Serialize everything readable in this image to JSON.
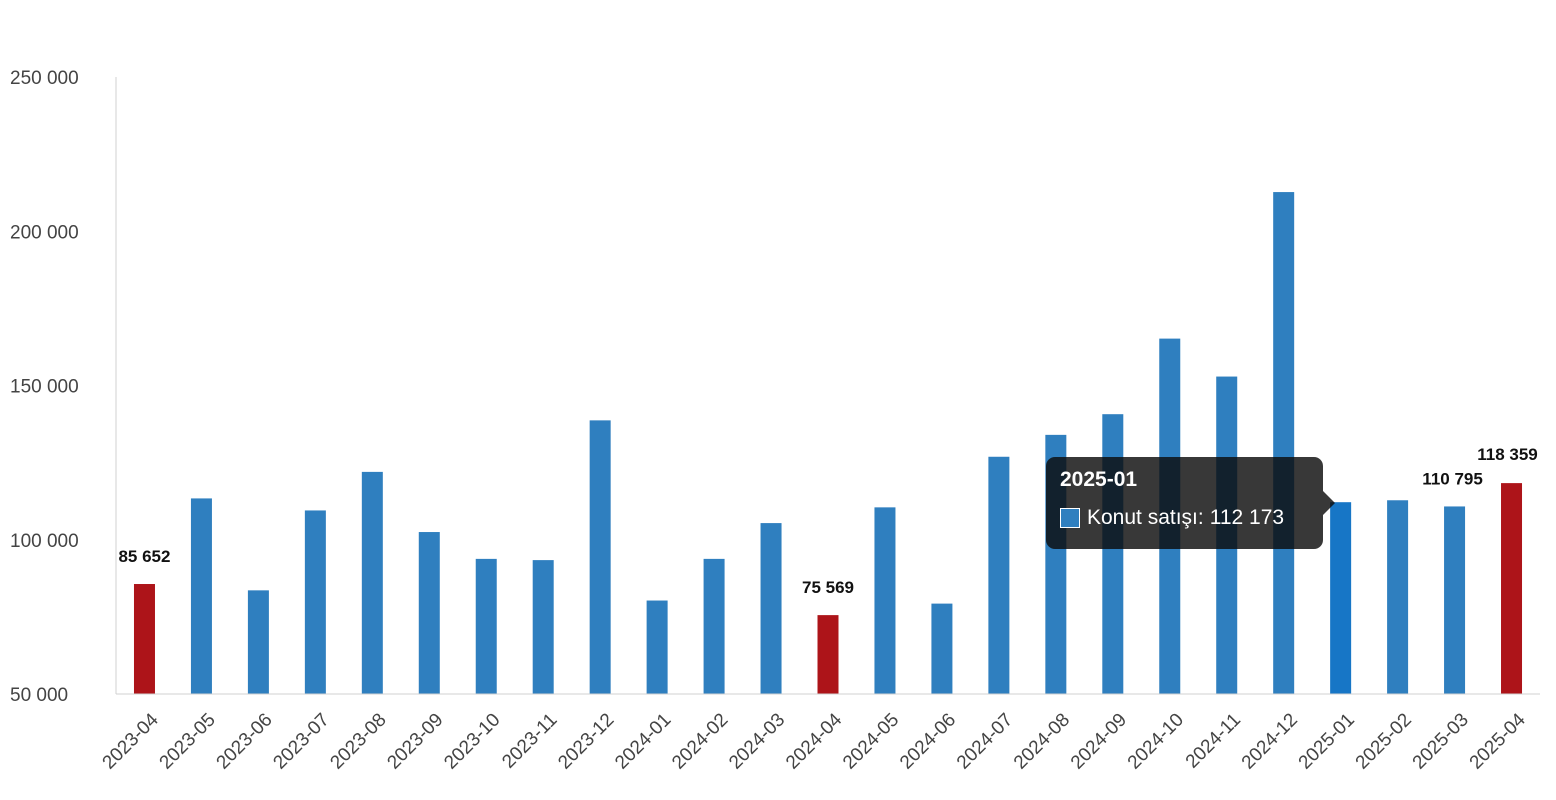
{
  "chart_data": {
    "type": "bar",
    "categories": [
      "2023-04",
      "2023-05",
      "2023-06",
      "2023-07",
      "2023-08",
      "2023-09",
      "2023-10",
      "2023-11",
      "2023-12",
      "2024-01",
      "2024-02",
      "2024-03",
      "2024-04",
      "2024-05",
      "2024-06",
      "2024-07",
      "2024-08",
      "2024-09",
      "2024-10",
      "2024-11",
      "2024-12",
      "2025-01",
      "2025-02",
      "2025-03",
      "2025-04"
    ],
    "series": [
      {
        "name": "Konut satışı",
        "values": [
          85652,
          113400,
          83600,
          109500,
          122000,
          102500,
          93800,
          93400,
          138700,
          80300,
          93800,
          105400,
          75569,
          110500,
          79300,
          126900,
          134000,
          140700,
          165200,
          152900,
          212700,
          112173,
          112800,
          110795,
          118359
        ]
      }
    ],
    "highlighted_categories": [
      "2023-04",
      "2024-04",
      "2025-04"
    ],
    "data_labels": {
      "2023-04": "85 652",
      "2024-04": "75 569",
      "2025-03": "110 795",
      "2025-04": "118 359"
    },
    "ylim": [
      50000,
      250000
    ],
    "yticks": [
      "50 000",
      "100 000",
      "150 000",
      "200 000",
      "250 000"
    ],
    "ytick_values": [
      50000,
      100000,
      150000,
      200000,
      250000
    ],
    "colors": {
      "bar": "#2f7fbf",
      "highlight": "#ad1419",
      "hover": "#1776c6",
      "axis": "#d0d0d0"
    },
    "grid": false,
    "legend": "none",
    "title": "",
    "xlabel": "",
    "ylabel": ""
  },
  "tooltip": {
    "category": "2025-01",
    "series_label": "Konut satışı:",
    "value_text": "112 173"
  }
}
